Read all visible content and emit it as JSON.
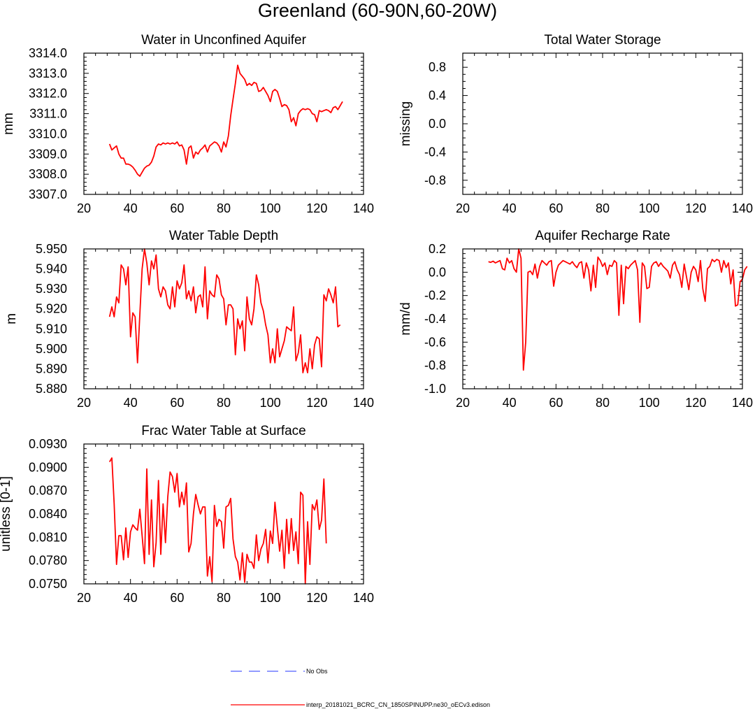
{
  "figure": {
    "title": "Greenland (60-90N,60-20W)",
    "line_color": "#ff0000",
    "obs_color": "#4f5dff"
  },
  "legend": {
    "entries": [
      {
        "name": "No Obs",
        "style": "dashed",
        "color": "#4f5dff"
      },
      {
        "name": "interp_20181021_BCRC_CN_1850SPINUPP.ne30_oECv3.edison",
        "style": "solid",
        "color": "#ff0000"
      }
    ]
  },
  "chart_data": [
    {
      "type": "line",
      "title": "Water in Unconfined Aquifer",
      "xlabel": "",
      "ylabel": "mm",
      "xlim": [
        20,
        140
      ],
      "ylim": [
        3307.0,
        3314.0
      ],
      "xticks": [
        "20",
        "40",
        "60",
        "80",
        "100",
        "120",
        "140"
      ],
      "yticks": [
        "3307.0",
        "3308.0",
        "3309.0",
        "3310.0",
        "3311.0",
        "3312.0",
        "3313.0",
        "3314.0"
      ],
      "series": [
        {
          "name": "interp_20181021_BCRC_CN_1850SPINUPP.ne30_oECv3.edison",
          "x_start": 31,
          "values": [
            3309.5,
            3309.2,
            3309.3,
            3309.4,
            3309.0,
            3308.8,
            3308.8,
            3308.5,
            3308.5,
            3308.45,
            3308.35,
            3308.2,
            3308.0,
            3307.9,
            3308.1,
            3308.3,
            3308.4,
            3308.45,
            3308.6,
            3308.9,
            3309.35,
            3309.5,
            3309.45,
            3309.55,
            3309.5,
            3309.55,
            3309.5,
            3309.55,
            3309.5,
            3309.6,
            3309.4,
            3309.45,
            3309.2,
            3308.5,
            3309.3,
            3309.4,
            3308.8,
            3309.1,
            3309.0,
            3309.2,
            3309.3,
            3309.45,
            3309.1,
            3309.4,
            3309.5,
            3309.6,
            3309.55,
            3309.4,
            3309.1,
            3309.6,
            3309.35,
            3309.9,
            3310.9,
            3311.7,
            3312.5,
            3313.4,
            3313.0,
            3312.85,
            3312.7,
            3312.4,
            3312.5,
            3312.4,
            3312.55,
            3312.5,
            3312.1,
            3312.15,
            3312.3,
            3312.1,
            3311.9,
            3311.6,
            3312.1,
            3312.2,
            3312.1,
            3311.75,
            3311.35,
            3311.45,
            3311.4,
            3311.2,
            3310.6,
            3310.8,
            3310.4,
            3311.0,
            3311.15,
            3311.25,
            3311.2,
            3311.25,
            3311.2,
            3311.0,
            3310.95,
            3310.6,
            3311.15,
            3311.1,
            3311.15,
            3311.2,
            3311.15,
            3311.05,
            3311.3,
            3311.35,
            3311.2,
            3311.4,
            3311.6
          ]
        }
      ]
    },
    {
      "type": "line",
      "title": "Total Water Storage",
      "xlabel": "",
      "ylabel": "missing",
      "xlim": [
        20,
        140
      ],
      "ylim": [
        -1.0,
        1.0
      ],
      "xticks": [
        "20",
        "40",
        "60",
        "80",
        "100",
        "120",
        "140"
      ],
      "yticks": [
        "-0.8",
        "-0.4",
        "0.0",
        "0.4",
        "0.8"
      ],
      "ytick_values": [
        -0.8,
        -0.4,
        0.0,
        0.4,
        0.8
      ],
      "series": []
    },
    {
      "type": "line",
      "title": "Water Table Depth",
      "xlabel": "",
      "ylabel": "m",
      "xlim": [
        20,
        140
      ],
      "ylim": [
        5.88,
        5.95
      ],
      "xticks": [
        "20",
        "40",
        "60",
        "80",
        "100",
        "120",
        "140"
      ],
      "yticks": [
        "5.880",
        "5.890",
        "5.900",
        "5.910",
        "5.920",
        "5.930",
        "5.940",
        "5.950"
      ],
      "series": [
        {
          "name": "interp_20181021_BCRC_CN_1850SPINUPP.ne30_oECv3.edison",
          "x_start": 31,
          "values": [
            5.916,
            5.921,
            5.916,
            5.926,
            5.923,
            5.942,
            5.94,
            5.932,
            5.941,
            5.906,
            5.918,
            5.916,
            5.893,
            5.917,
            5.94,
            5.95,
            5.943,
            5.932,
            5.944,
            5.94,
            5.947,
            5.93,
            5.926,
            5.931,
            5.929,
            5.922,
            5.92,
            5.931,
            5.921,
            5.934,
            5.93,
            5.933,
            5.942,
            5.925,
            5.929,
            5.924,
            5.931,
            5.918,
            5.926,
            5.927,
            5.921,
            5.941,
            5.915,
            5.929,
            5.927,
            5.926,
            5.937,
            5.935,
            5.927,
            5.925,
            5.912,
            5.922,
            5.922,
            5.92,
            5.897,
            5.915,
            5.91,
            5.914,
            5.899,
            5.926,
            5.915,
            5.912,
            5.92,
            5.937,
            5.932,
            5.923,
            5.919,
            5.912,
            5.907,
            5.893,
            5.9,
            5.893,
            5.91,
            5.896,
            5.9,
            5.904,
            5.911,
            5.91,
            5.909,
            5.921,
            5.894,
            5.898,
            5.907,
            5.888,
            5.893,
            5.888,
            5.9,
            5.89,
            5.902,
            5.906,
            5.905,
            5.891,
            5.927,
            5.924,
            5.93,
            5.927,
            5.923,
            5.931,
            5.911,
            5.912
          ]
        }
      ]
    },
    {
      "type": "line",
      "title": "Aquifer Recharge Rate",
      "xlabel": "",
      "ylabel": "mm/d",
      "xlim": [
        20,
        140
      ],
      "ylim": [
        -1.0,
        0.2
      ],
      "xticks": [
        "20",
        "40",
        "60",
        "80",
        "100",
        "120",
        "140"
      ],
      "yticks": [
        "-1.0",
        "-0.8",
        "-0.6",
        "-0.4",
        "-0.2",
        "0.0",
        "0.2"
      ],
      "series": [
        {
          "name": "interp_20181021_BCRC_CN_1850SPINUPP.ne30_oECv3.edison",
          "x_start": 31,
          "values": [
            0.09,
            0.085,
            0.095,
            0.08,
            0.09,
            0.1,
            0.03,
            0.02,
            0.12,
            0.08,
            0.1,
            0.03,
            0.0,
            0.2,
            0.12,
            -0.84,
            -0.6,
            0.0,
            0.01,
            -0.02,
            0.07,
            -0.05,
            0.05,
            0.1,
            0.08,
            0.06,
            0.09,
            0.1,
            -0.12,
            0.0,
            0.06,
            0.08,
            0.1,
            0.09,
            0.08,
            0.07,
            0.09,
            0.06,
            0.04,
            0.08,
            0.09,
            -0.05,
            0.08,
            0.02,
            -0.16,
            0.06,
            -0.13,
            0.13,
            0.1,
            0.05,
            0.08,
            -0.02,
            0.06,
            0.05,
            0.1,
            0.08,
            -0.37,
            0.06,
            -0.27,
            0.05,
            0.03,
            0.06,
            0.08,
            0.1,
            0.02,
            -0.43,
            0.08,
            0.05,
            -0.14,
            -0.13,
            0.05,
            0.08,
            0.09,
            0.05,
            0.08,
            0.05,
            0.03,
            0.01,
            -0.05,
            0.06,
            0.09,
            0.02,
            -0.02,
            -0.13,
            0.07,
            -0.04,
            -0.15,
            0.0,
            0.05,
            0.02,
            -0.08,
            0.1,
            -0.14,
            -0.25,
            0.03,
            0.05,
            0.11,
            0.09,
            0.11,
            0.1,
            0.0,
            0.1,
            0.04,
            0.08,
            -0.1,
            0.02,
            -0.29,
            -0.28,
            -0.08,
            -0.06,
            0.02,
            0.05
          ]
        }
      ]
    },
    {
      "type": "line",
      "title": "Frac Water Table at Surface",
      "xlabel": "",
      "ylabel": "unitless [0-1]",
      "xlim": [
        20,
        140
      ],
      "ylim": [
        0.075,
        0.093
      ],
      "xticks": [
        "20",
        "40",
        "60",
        "80",
        "100",
        "120",
        "140"
      ],
      "yticks": [
        "0.0750",
        "0.0780",
        "0.0810",
        "0.0840",
        "0.0870",
        "0.0900",
        "0.0930"
      ],
      "series": [
        {
          "name": "interp_20181021_BCRC_CN_1850SPINUPP.ne30_oECv3.edison",
          "x_start": 31,
          "values": [
            0.0907,
            0.0912,
            0.0853,
            0.0775,
            0.0812,
            0.0812,
            0.0781,
            0.0822,
            0.0784,
            0.0817,
            0.0826,
            0.0822,
            0.0819,
            0.0846,
            0.0812,
            0.0776,
            0.0898,
            0.0788,
            0.0858,
            0.0772,
            0.0803,
            0.0883,
            0.0788,
            0.0853,
            0.0803,
            0.0862,
            0.0894,
            0.0888,
            0.0868,
            0.0892,
            0.0849,
            0.0868,
            0.0852,
            0.088,
            0.0791,
            0.0802,
            0.084,
            0.0865,
            0.0852,
            0.084,
            0.0849,
            0.0849,
            0.076,
            0.0785,
            0.0753,
            0.0851,
            0.0824,
            0.0833,
            0.083,
            0.0796,
            0.0849,
            0.0851,
            0.086,
            0.0808,
            0.0785,
            0.0778,
            0.0755,
            0.079,
            0.0752,
            0.0788,
            0.0778,
            0.0778,
            0.077,
            0.0813,
            0.078,
            0.0795,
            0.0802,
            0.082,
            0.0777,
            0.0818,
            0.0802,
            0.0855,
            0.0823,
            0.0792,
            0.0819,
            0.077,
            0.0833,
            0.0789,
            0.0834,
            0.0793,
            0.0817,
            0.0776,
            0.0868,
            0.0864,
            0.075,
            0.083,
            0.0775,
            0.0852,
            0.0845,
            0.0858,
            0.082,
            0.0832,
            0.0885,
            0.0802
          ]
        }
      ]
    }
  ]
}
